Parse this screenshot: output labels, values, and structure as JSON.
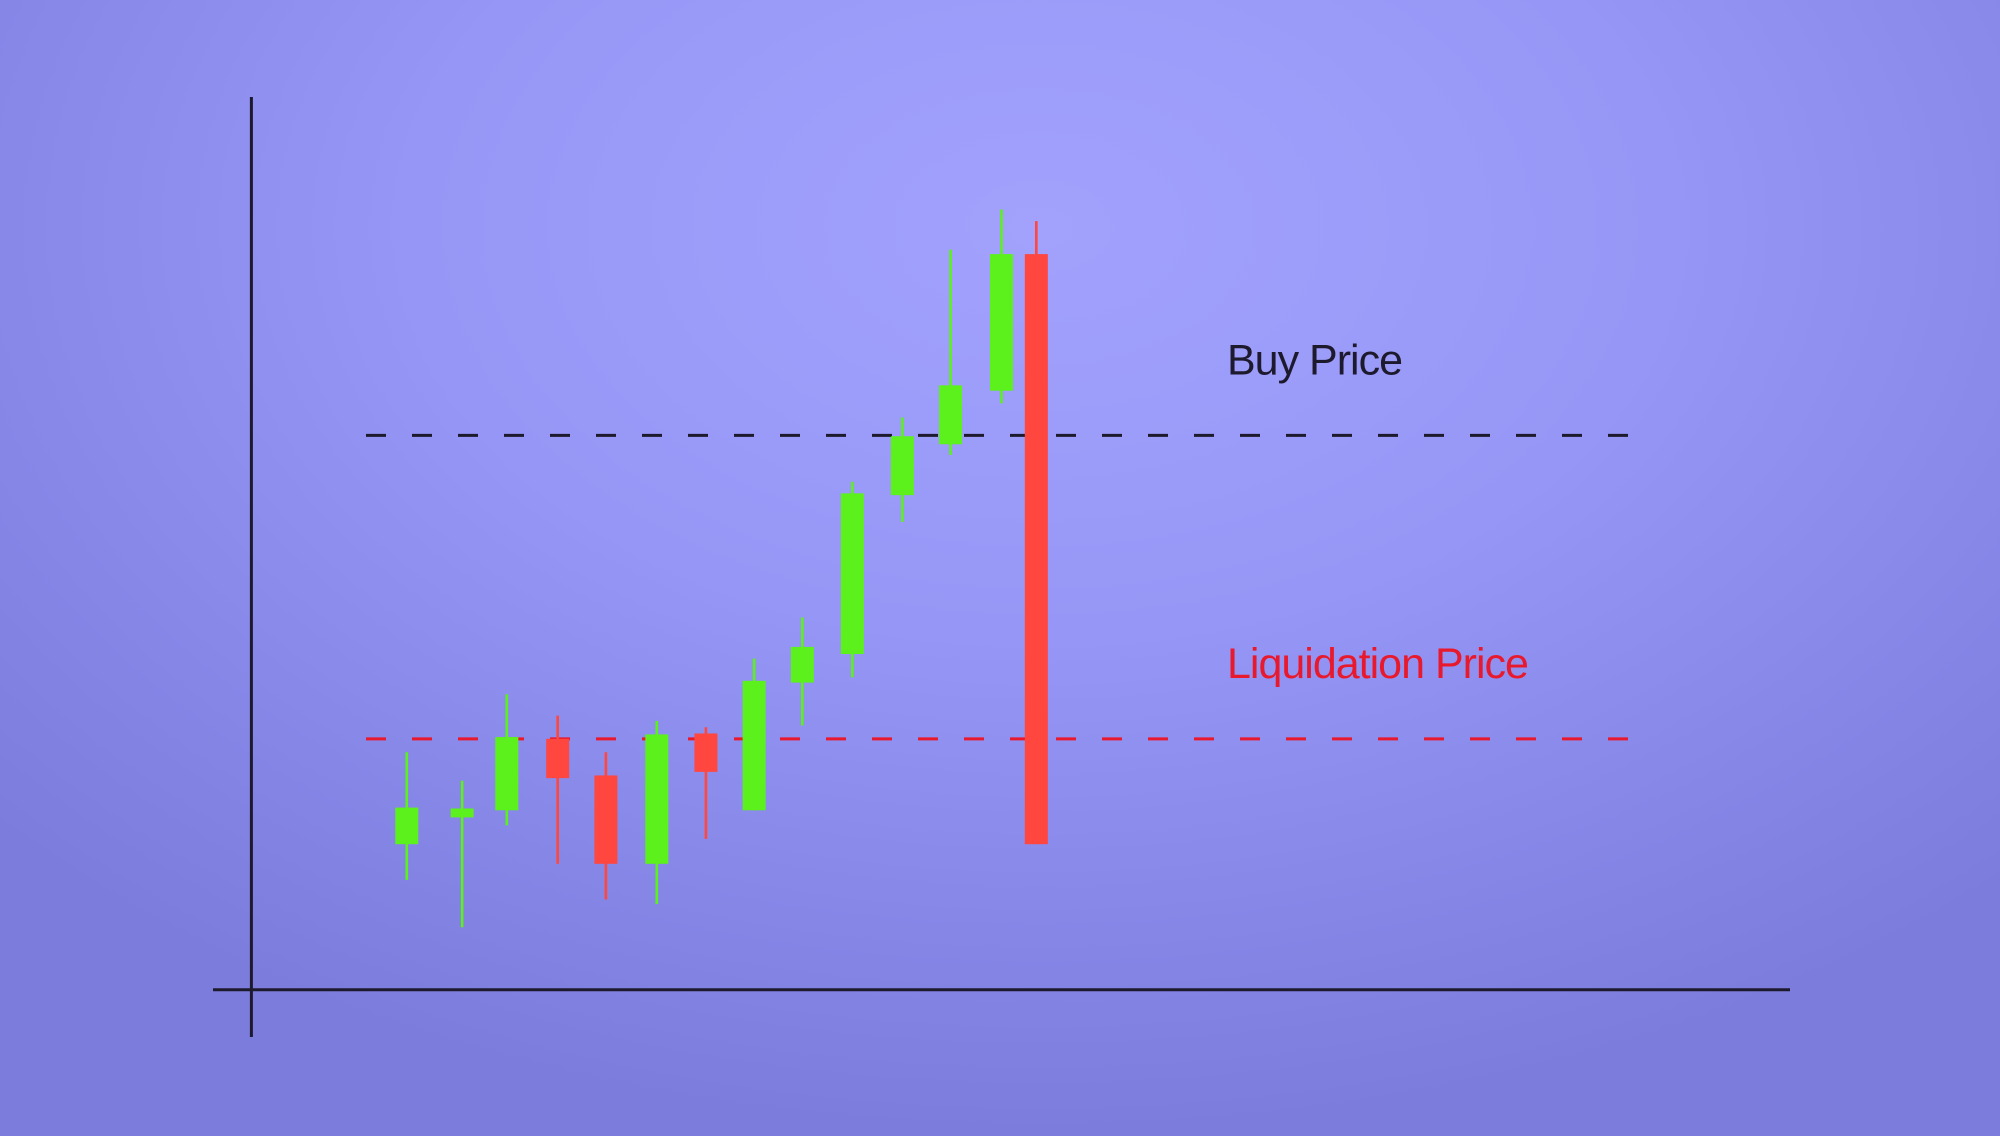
{
  "chart_data": {
    "type": "candlestick",
    "x": [
      17.4,
      23.6,
      28.6,
      34.3,
      39.7,
      45.4,
      50.9,
      56.3,
      61.7,
      67.3,
      72.9,
      78.3,
      84,
      87.9
    ],
    "open": [
      16.3,
      19.3,
      20.1,
      28.1,
      24,
      14.1,
      28.7,
      20.1,
      34.4,
      37.6,
      55.4,
      61.1,
      67.1,
      82.4
    ],
    "close": [
      20.4,
      20.3,
      28.3,
      23.7,
      14.1,
      28.6,
      24.4,
      34.6,
      38.4,
      55.6,
      62,
      67.7,
      82.4,
      16.3
    ],
    "high": [
      26.6,
      23.4,
      33.1,
      30.7,
      26.6,
      30.1,
      29.4,
      37.1,
      41.7,
      56.9,
      64.1,
      82.9,
      87.4,
      86.1
    ],
    "low": [
      12.3,
      7,
      18.4,
      14.1,
      10.1,
      9.6,
      16.9,
      20.1,
      29.6,
      35,
      52.4,
      59.9,
      65.7,
      16.3
    ],
    "up_color": "#5cf01c",
    "down_color": "#ff463f",
    "xlim": [
      -4.3,
      172.3
    ],
    "ylim": [
      -5.3,
      100
    ],
    "reference_lines": [
      {
        "label": "Buy Price",
        "value": 62.1,
        "color": "#1e1a2e"
      },
      {
        "label": "Liquidation Price",
        "value": 28.1,
        "color": "#e8192c"
      }
    ]
  }
}
